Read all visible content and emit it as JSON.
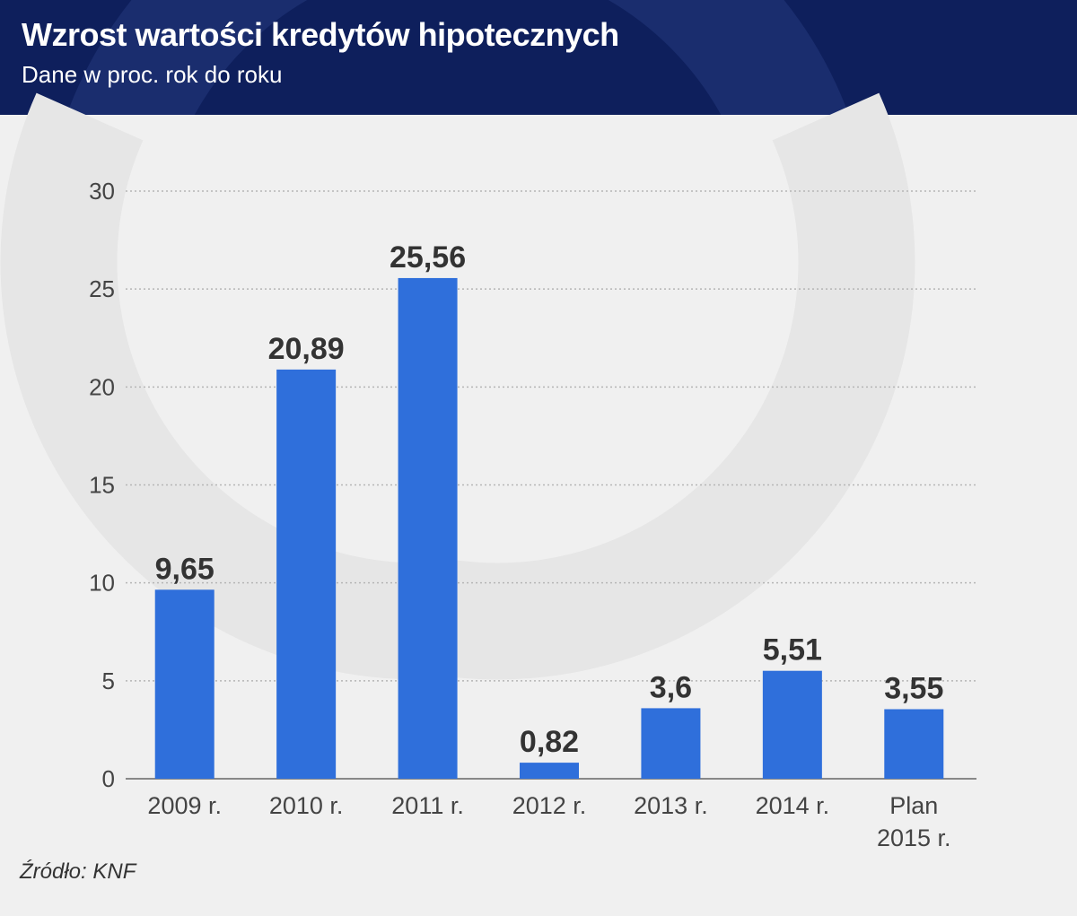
{
  "header": {
    "title": "Wzrost wartości kredytów hipotecznych",
    "subtitle": "Dane w proc. rok do roku"
  },
  "source": "Źródło: KNF",
  "colors": {
    "header_bg": "#0e1f5c",
    "bar": "#2f6fdb",
    "background": "#f0f0f0",
    "watermark": "#e6e6e6"
  },
  "chart_data": {
    "type": "bar",
    "categories": [
      "2009 r.",
      "2010 r.",
      "2011 r.",
      "2012 r.",
      "2013 r.",
      "2014 r.",
      "Plan 2015 r."
    ],
    "values": [
      9.65,
      20.89,
      25.56,
      0.82,
      3.6,
      5.51,
      3.55
    ],
    "value_labels": [
      "9,65",
      "20,89",
      "25,56",
      "0,82",
      "3,6",
      "5,51",
      "3,55"
    ],
    "yticks": [
      0,
      5,
      10,
      15,
      20,
      25,
      30
    ],
    "ylim": [
      0,
      30
    ],
    "grid": true,
    "legend": "none"
  }
}
